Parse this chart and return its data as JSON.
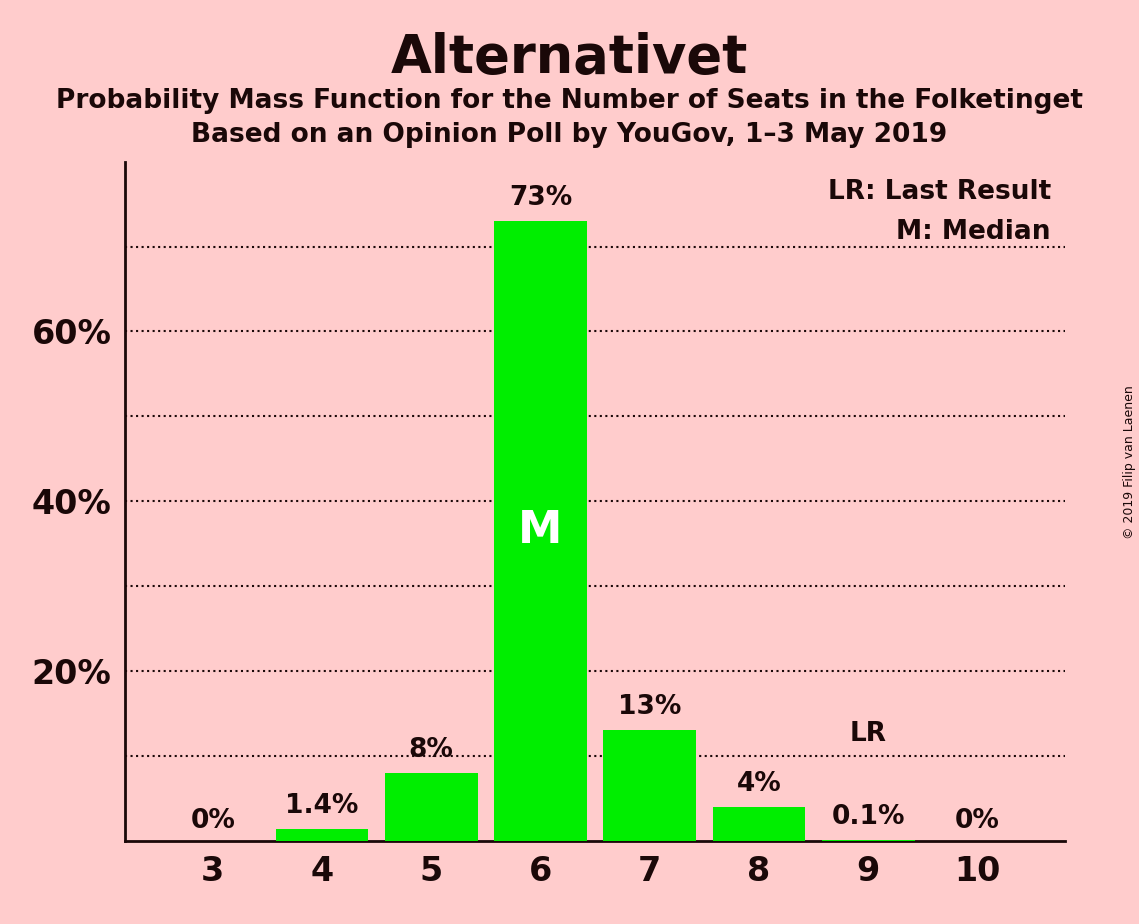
{
  "title": "Alternativet",
  "subtitle1": "Probability Mass Function for the Number of Seats in the Folketinget",
  "subtitle2": "Based on an Opinion Poll by YouGov, 1–3 May 2019",
  "copyright": "© 2019 Filip van Laenen",
  "seats": [
    3,
    4,
    5,
    6,
    7,
    8,
    9,
    10
  ],
  "values": [
    0.0,
    1.4,
    8.0,
    73.0,
    13.0,
    4.0,
    0.1,
    0.0
  ],
  "labels": [
    "0%",
    "1.4%",
    "8%",
    "73%",
    "13%",
    "4%",
    "0.1%",
    "0%"
  ],
  "bar_color": "#00ee00",
  "bg_color": "#ffcccc",
  "text_color": "#1a0808",
  "median_seat": 6,
  "lr_seat": 9,
  "ylim": [
    0,
    80
  ],
  "ytick_positions": [
    20,
    40,
    60
  ],
  "ytick_labels": [
    "20%",
    "40%",
    "60%"
  ],
  "grid_ticks": [
    10,
    20,
    30,
    40,
    50,
    60,
    70
  ],
  "legend_lr_label": "LR: Last Result",
  "legend_m_label": "M: Median",
  "lr_label": "LR",
  "m_label": "M"
}
